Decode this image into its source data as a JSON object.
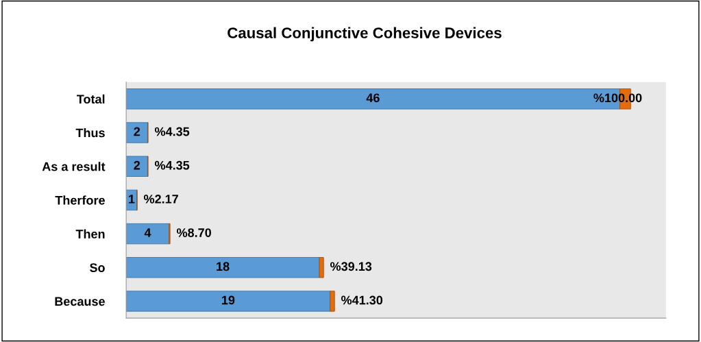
{
  "chart_data": {
    "type": "bar",
    "orientation": "horizontal",
    "stacked": true,
    "title": "Causal Conjunctive Cohesive Devices",
    "categories": [
      "Total",
      "Thus",
      "As a result",
      "Therfore",
      "Then",
      "So",
      "Because"
    ],
    "series": [
      {
        "color": "#5b9bd5",
        "values": [
          46,
          2,
          2,
          1,
          4,
          18,
          19
        ],
        "value_labels": [
          "46",
          "2",
          "2",
          "1",
          "4",
          "18",
          "19"
        ]
      },
      {
        "color": "#e46c0a",
        "values": [
          1.0,
          0.0435,
          0.0435,
          0.0217,
          0.087,
          0.3913,
          0.413
        ],
        "value_labels": [
          "%100.00",
          "%4.35",
          "%4.35",
          "%2.17",
          "%8.70",
          "%39.13",
          "%41.30"
        ]
      }
    ],
    "grid": false,
    "legend": false
  }
}
